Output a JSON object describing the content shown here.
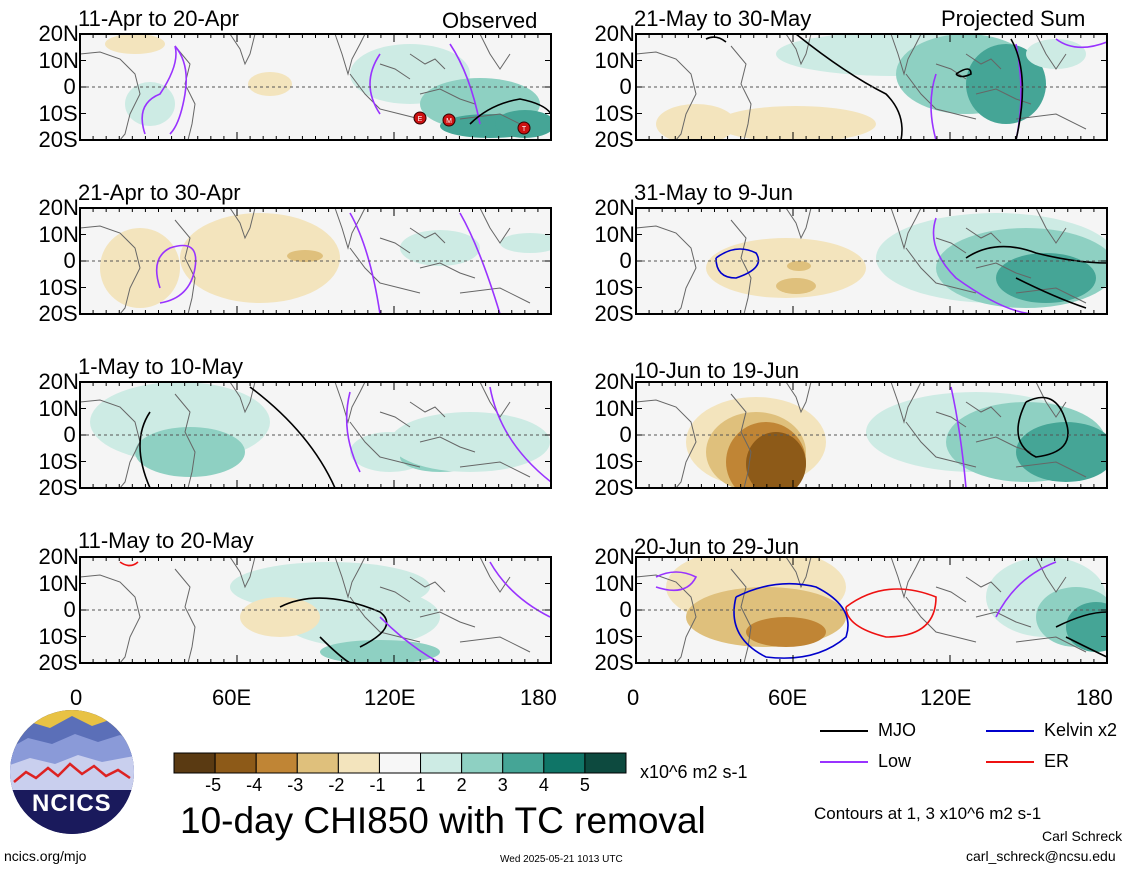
{
  "panels": [
    {
      "title": "11-Apr to 20-Apr",
      "tag": "Observed"
    },
    {
      "title": "21-May to 30-May",
      "tag": "Projected Sum"
    },
    {
      "title": "21-Apr to 30-Apr",
      "tag": ""
    },
    {
      "title": "31-May to 9-Jun",
      "tag": ""
    },
    {
      "title": "1-May to 10-May",
      "tag": ""
    },
    {
      "title": "10-Jun to 19-Jun",
      "tag": ""
    },
    {
      "title": "11-May to 20-May",
      "tag": ""
    },
    {
      "title": "20-Jun to 29-Jun",
      "tag": ""
    }
  ],
  "lat_labels": [
    "20N",
    "10N",
    "0",
    "10S",
    "20S"
  ],
  "lon_labels": [
    "0",
    "60E",
    "120E",
    "180"
  ],
  "colorbar": {
    "ticks": [
      "-5",
      "-4",
      "-3",
      "-2",
      "-1",
      "1",
      "2",
      "3",
      "4",
      "5"
    ],
    "units": "x10^6 m2 s-1",
    "colors": [
      "#5a3a12",
      "#8d5a18",
      "#c08535",
      "#dfc07c",
      "#f3e4bd",
      "#f7f7f7",
      "#cdebe4",
      "#8ed0c2",
      "#45a596",
      "#0f7567",
      "#0d4a3f"
    ]
  },
  "legend": {
    "mjo": "MJO",
    "kelvin": "Kelvin x2",
    "low": "Low",
    "er": "ER",
    "mjo_color": "#000000",
    "kelvin_color": "#0000cc",
    "low_color": "#9933ff",
    "er_color": "#ee1111"
  },
  "main_title": "10-day CHI850 with TC removal",
  "logo_text": "NCICS",
  "contour_note": "Contours at 1, 3 x10^6 m2 s-1",
  "author": "Carl Schreck",
  "email": "carl_schreck@ncsu.edu",
  "website": "ncics.org/mjo",
  "timestamp": "Wed 2025-05-21 1013 UTC",
  "tc_markers": [
    "E",
    "M",
    "T"
  ]
}
